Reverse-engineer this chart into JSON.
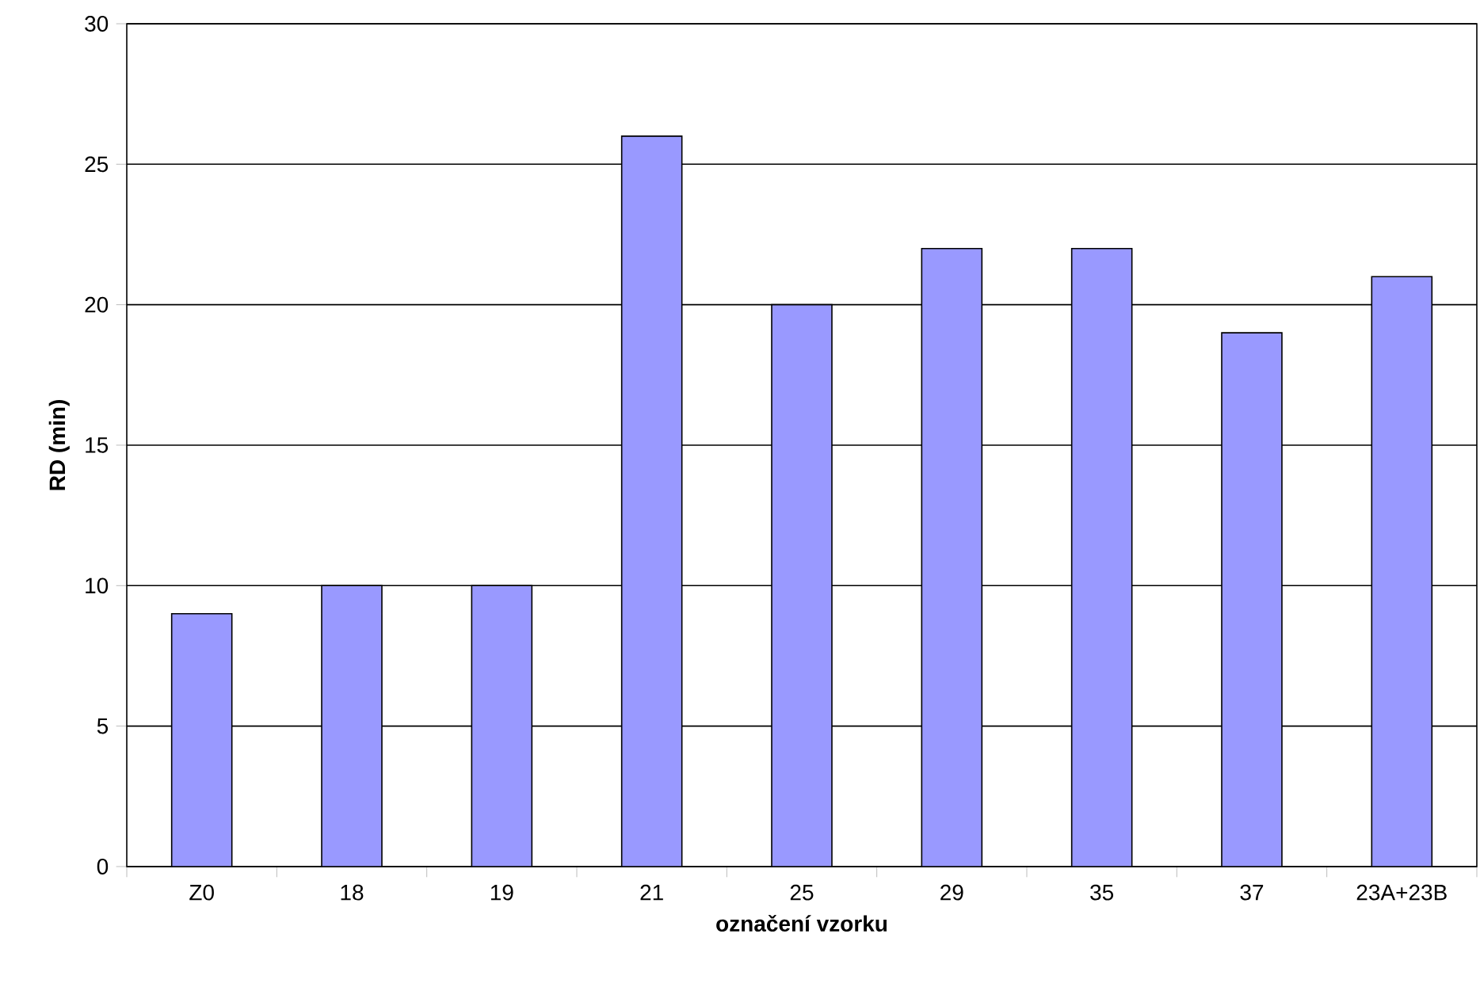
{
  "chart_data": {
    "type": "bar",
    "xlabel": "označení vzorku",
    "ylabel": "RD (min)",
    "categories": [
      "Z0",
      "18",
      "19",
      "21",
      "25",
      "29",
      "35",
      "37",
      "23A+23B"
    ],
    "values": [
      9,
      10,
      10,
      26,
      20,
      22,
      22,
      19,
      21
    ],
    "color": "#9999ff",
    "ylim": [
      0,
      30
    ],
    "yticks": [
      0,
      5,
      10,
      15,
      20,
      25,
      30
    ],
    "grid": "y"
  }
}
